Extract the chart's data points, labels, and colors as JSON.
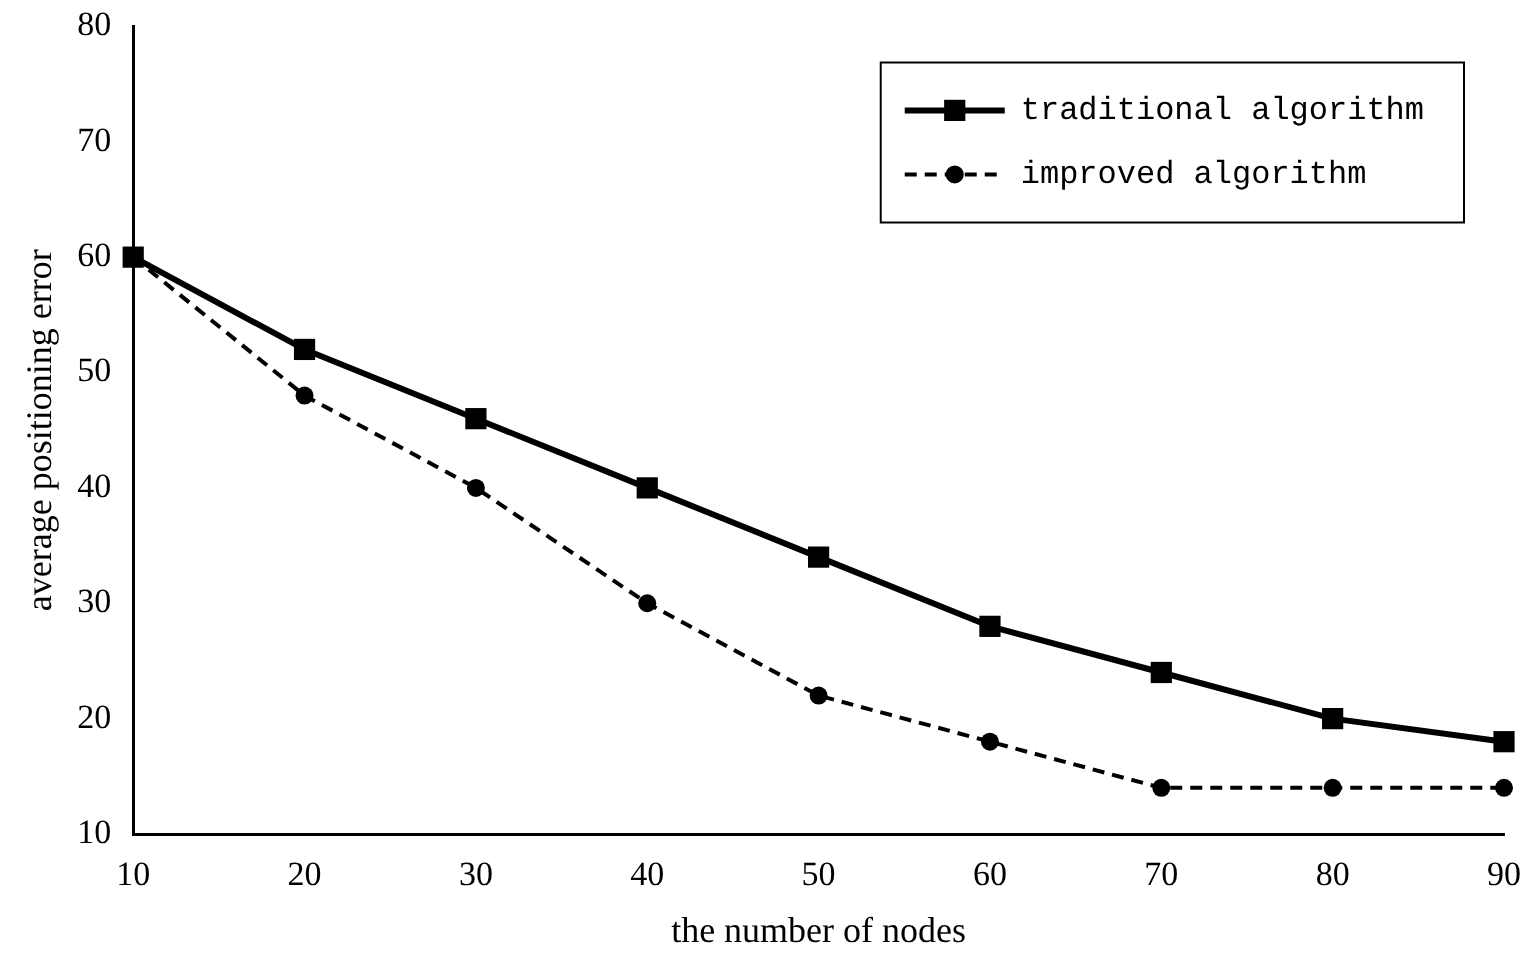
{
  "chart_data": {
    "type": "line",
    "xlabel": "the number of nodes",
    "ylabel": "average positioning error",
    "x": [
      10,
      20,
      30,
      40,
      50,
      60,
      70,
      80,
      90
    ],
    "series": [
      {
        "name": "traditional algorithm",
        "color": "#000000",
        "values": [
          60,
          52,
          46,
          40,
          34,
          28,
          24,
          20,
          18
        ],
        "marker": "square",
        "line_style": "solid"
      },
      {
        "name": "improved algorithm",
        "color": "#000000",
        "values": [
          60,
          48,
          40,
          30,
          22,
          18,
          14,
          14,
          14
        ],
        "marker": "circle",
        "line_style": "dashed"
      }
    ],
    "xlim": [
      10,
      90
    ],
    "xticks": [
      10,
      20,
      30,
      40,
      50,
      60,
      70,
      80,
      90
    ],
    "ylim": [
      10,
      80
    ],
    "yticks": [
      10,
      20,
      30,
      40,
      50,
      60,
      70,
      80
    ],
    "grid": false,
    "legend": "top right"
  }
}
